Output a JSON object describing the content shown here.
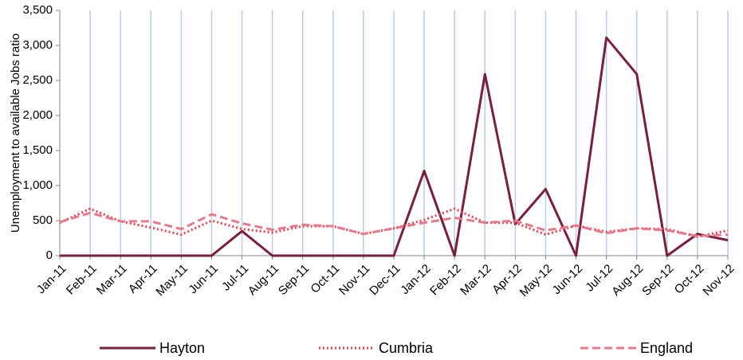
{
  "chart_data": {
    "type": "line",
    "y_label": "Unemployment to available Jobs ratio",
    "categories": [
      "Jan-11",
      "Feb-11",
      "Mar-11",
      "Apr-11",
      "May-11",
      "Jun-11",
      "Jul-11",
      "Aug-11",
      "Sep-11",
      "Oct-11",
      "Nov-11",
      "Dec-11",
      "Jan-12",
      "Feb-12",
      "Mar-12",
      "Apr-12",
      "May-12",
      "Jun-12",
      "Jul-12",
      "Aug-12",
      "Sep-12",
      "Oct-12",
      "Nov-12"
    ],
    "series": [
      {
        "name": "Hayton",
        "color": "#7a1e3c",
        "style": "solid",
        "values": [
          0,
          0,
          0,
          0,
          0,
          0,
          350,
          0,
          0,
          0,
          0,
          0,
          1210,
          0,
          2590,
          450,
          950,
          0,
          3110,
          2590,
          0,
          310,
          220
        ]
      },
      {
        "name": "Cumbria",
        "color": "#e8404e",
        "style": "dotted",
        "values": [
          470,
          670,
          490,
          400,
          300,
          500,
          380,
          330,
          420,
          420,
          310,
          390,
          510,
          670,
          470,
          470,
          300,
          430,
          340,
          390,
          380,
          270,
          360
        ]
      },
      {
        "name": "England",
        "color": "#e8788a",
        "style": "dashed",
        "values": [
          480,
          610,
          490,
          490,
          380,
          590,
          460,
          370,
          440,
          420,
          310,
          390,
          470,
          540,
          470,
          500,
          360,
          430,
          320,
          390,
          360,
          280,
          300
        ]
      }
    ],
    "ylim": [
      0,
      3500
    ],
    "yticks": [
      0,
      500,
      {
        "value": 1000,
        "label": "1,000"
      },
      {
        "value": 1500,
        "label": "1,500"
      },
      {
        "value": 2000,
        "label": "2,000"
      },
      {
        "value": 2500,
        "label": "2,500"
      },
      {
        "value": 3000,
        "label": "3,000"
      },
      {
        "value": 3500,
        "label": "3,500"
      }
    ],
    "grid": true
  }
}
